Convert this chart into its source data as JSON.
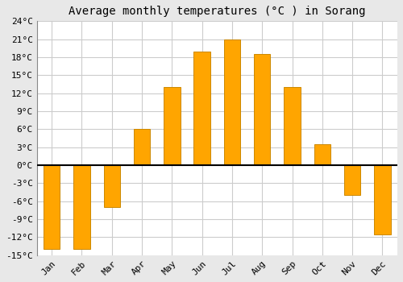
{
  "title": "Average monthly temperatures (°C ) in Sorang",
  "months": [
    "Jan",
    "Feb",
    "Mar",
    "Apr",
    "May",
    "Jun",
    "Jul",
    "Aug",
    "Sep",
    "Oct",
    "Nov",
    "Dec"
  ],
  "values": [
    -14,
    -14,
    -7,
    6,
    13,
    19,
    21,
    18.5,
    13,
    3.5,
    -5,
    -11.5
  ],
  "bar_color": "#FFA500",
  "bar_edge_color": "#CC8800",
  "plot_bg_color": "#ffffff",
  "fig_bg_color": "#e8e8e8",
  "ylim": [
    -15,
    24
  ],
  "yticks": [
    -15,
    -12,
    -9,
    -6,
    -3,
    0,
    3,
    6,
    9,
    12,
    15,
    18,
    21,
    24
  ],
  "ytick_labels": [
    "-15°C",
    "-12°C",
    "-9°C",
    "-6°C",
    "-3°C",
    "0°C",
    "3°C",
    "6°C",
    "9°C",
    "12°C",
    "15°C",
    "18°C",
    "21°C",
    "24°C"
  ],
  "grid_color": "#cccccc",
  "zero_line_color": "#000000",
  "title_fontsize": 10,
  "tick_fontsize": 8,
  "font_family": "monospace",
  "bar_width": 0.55
}
